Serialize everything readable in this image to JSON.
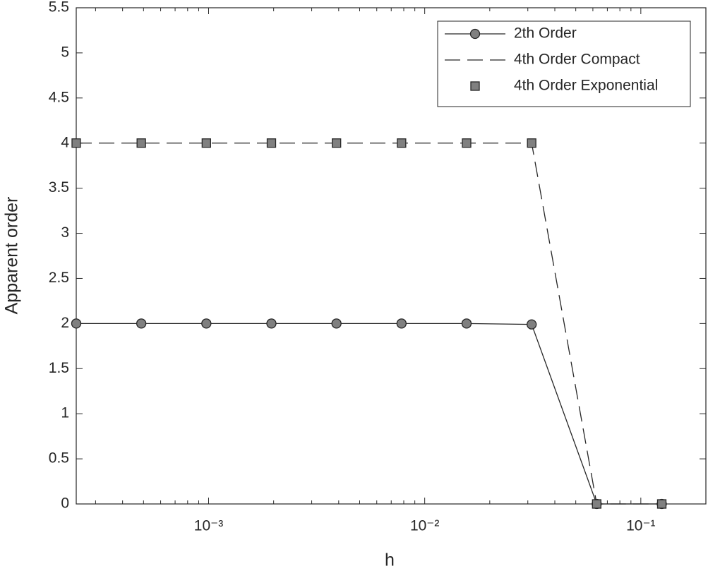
{
  "chart_data": {
    "type": "line",
    "xlabel": "h",
    "ylabel": "Apparent order",
    "x": [
      0.000244140625,
      0.00048828125,
      0.0009765625,
      0.001953125,
      0.00390625,
      0.0078125,
      0.015625,
      0.03125,
      0.0625,
      0.125
    ],
    "series": [
      {
        "name": "2th Order",
        "color": "#262626",
        "marker_color": "#808080",
        "line": "solid",
        "marker": "circle",
        "values": [
          2,
          2,
          2,
          2,
          2,
          2,
          2,
          1.99,
          0,
          0
        ]
      },
      {
        "name": "4th Order Compact",
        "color": "#262626",
        "line": "dashed",
        "marker": "none",
        "values": [
          4,
          4,
          4,
          4,
          4,
          4,
          4,
          4,
          0,
          0
        ]
      },
      {
        "name": "4th Order Exponential",
        "color": "#262626",
        "marker_color": "#808080",
        "line": "none",
        "marker": "square",
        "values": [
          4,
          4,
          4,
          4,
          4,
          4,
          4,
          4,
          0,
          0
        ]
      }
    ],
    "xscale": "log",
    "xlim": [
      0.000244140625,
      0.2
    ],
    "xticks": [
      {
        "value": 0.001,
        "label": "10⁻³"
      },
      {
        "value": 0.01,
        "label": "10⁻²"
      },
      {
        "value": 0.1,
        "label": "10⁻¹"
      }
    ],
    "xminorticks": [
      0.0003,
      0.0004,
      0.0005,
      0.0006,
      0.0007,
      0.0008,
      0.0009,
      0.002,
      0.003,
      0.004,
      0.005,
      0.006,
      0.007,
      0.008,
      0.009,
      0.02,
      0.03,
      0.04,
      0.05,
      0.06,
      0.07,
      0.08,
      0.09,
      0.2
    ],
    "ylim": [
      0,
      5.5
    ],
    "yticks": [
      0,
      0.5,
      1,
      1.5,
      2,
      2.5,
      3,
      3.5,
      4,
      4.5,
      5,
      5.5
    ],
    "grid": false,
    "legend": "upper right"
  }
}
